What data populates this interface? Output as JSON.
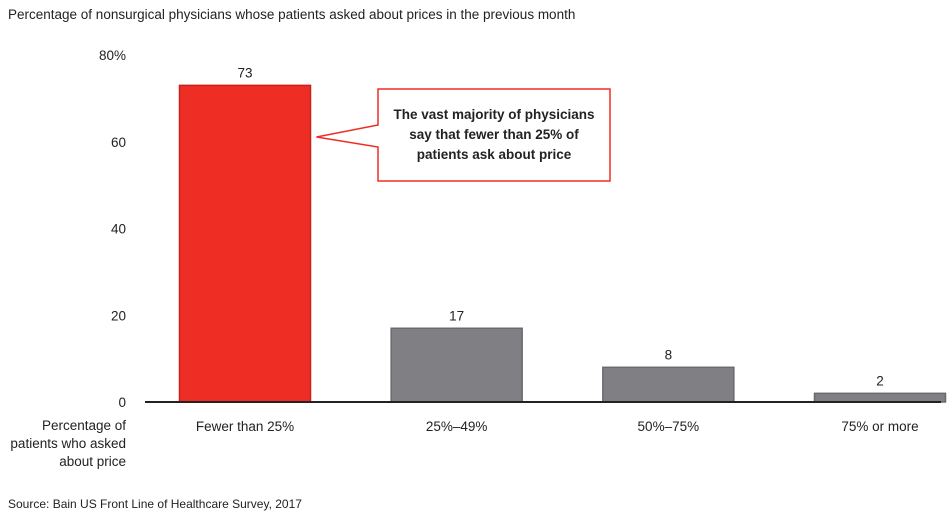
{
  "header": {
    "title": "Percentage of nonsurgical physicians whose patients asked about prices in the previous month"
  },
  "chart_data": {
    "type": "bar",
    "title": "Percentage of nonsurgical physicians whose patients asked about prices in the previous month",
    "xlabel_lines": [
      "Percentage of",
      "patients who asked",
      "about price"
    ],
    "categories": [
      "Fewer than 25%",
      "25%–49%",
      "50%–75%",
      "75% or more"
    ],
    "values": [
      73,
      17,
      8,
      2
    ],
    "data_labels": [
      "73",
      "17",
      "8",
      "2"
    ],
    "bar_colors": [
      "#ee2e24",
      "#808084",
      "#808084",
      "#808084"
    ],
    "bar_outline_colors": [
      "#c8201a",
      "#6a6a6e",
      "#6a6a6e",
      "#6a6a6e"
    ],
    "ylim": [
      0,
      80
    ],
    "y_ticks": [
      0,
      20,
      40,
      60,
      80
    ],
    "y_tick_labels": [
      "0",
      "20",
      "40",
      "60",
      "80%"
    ],
    "grid": false,
    "annotation": {
      "text": "The vast majority of physicians say that fewer than 25% of patients ask about price",
      "target_category": "Fewer than 25%",
      "border_color": "#ee2e24"
    }
  },
  "footer": {
    "source": "Source: Bain US Front Line of Healthcare Survey, 2017"
  }
}
